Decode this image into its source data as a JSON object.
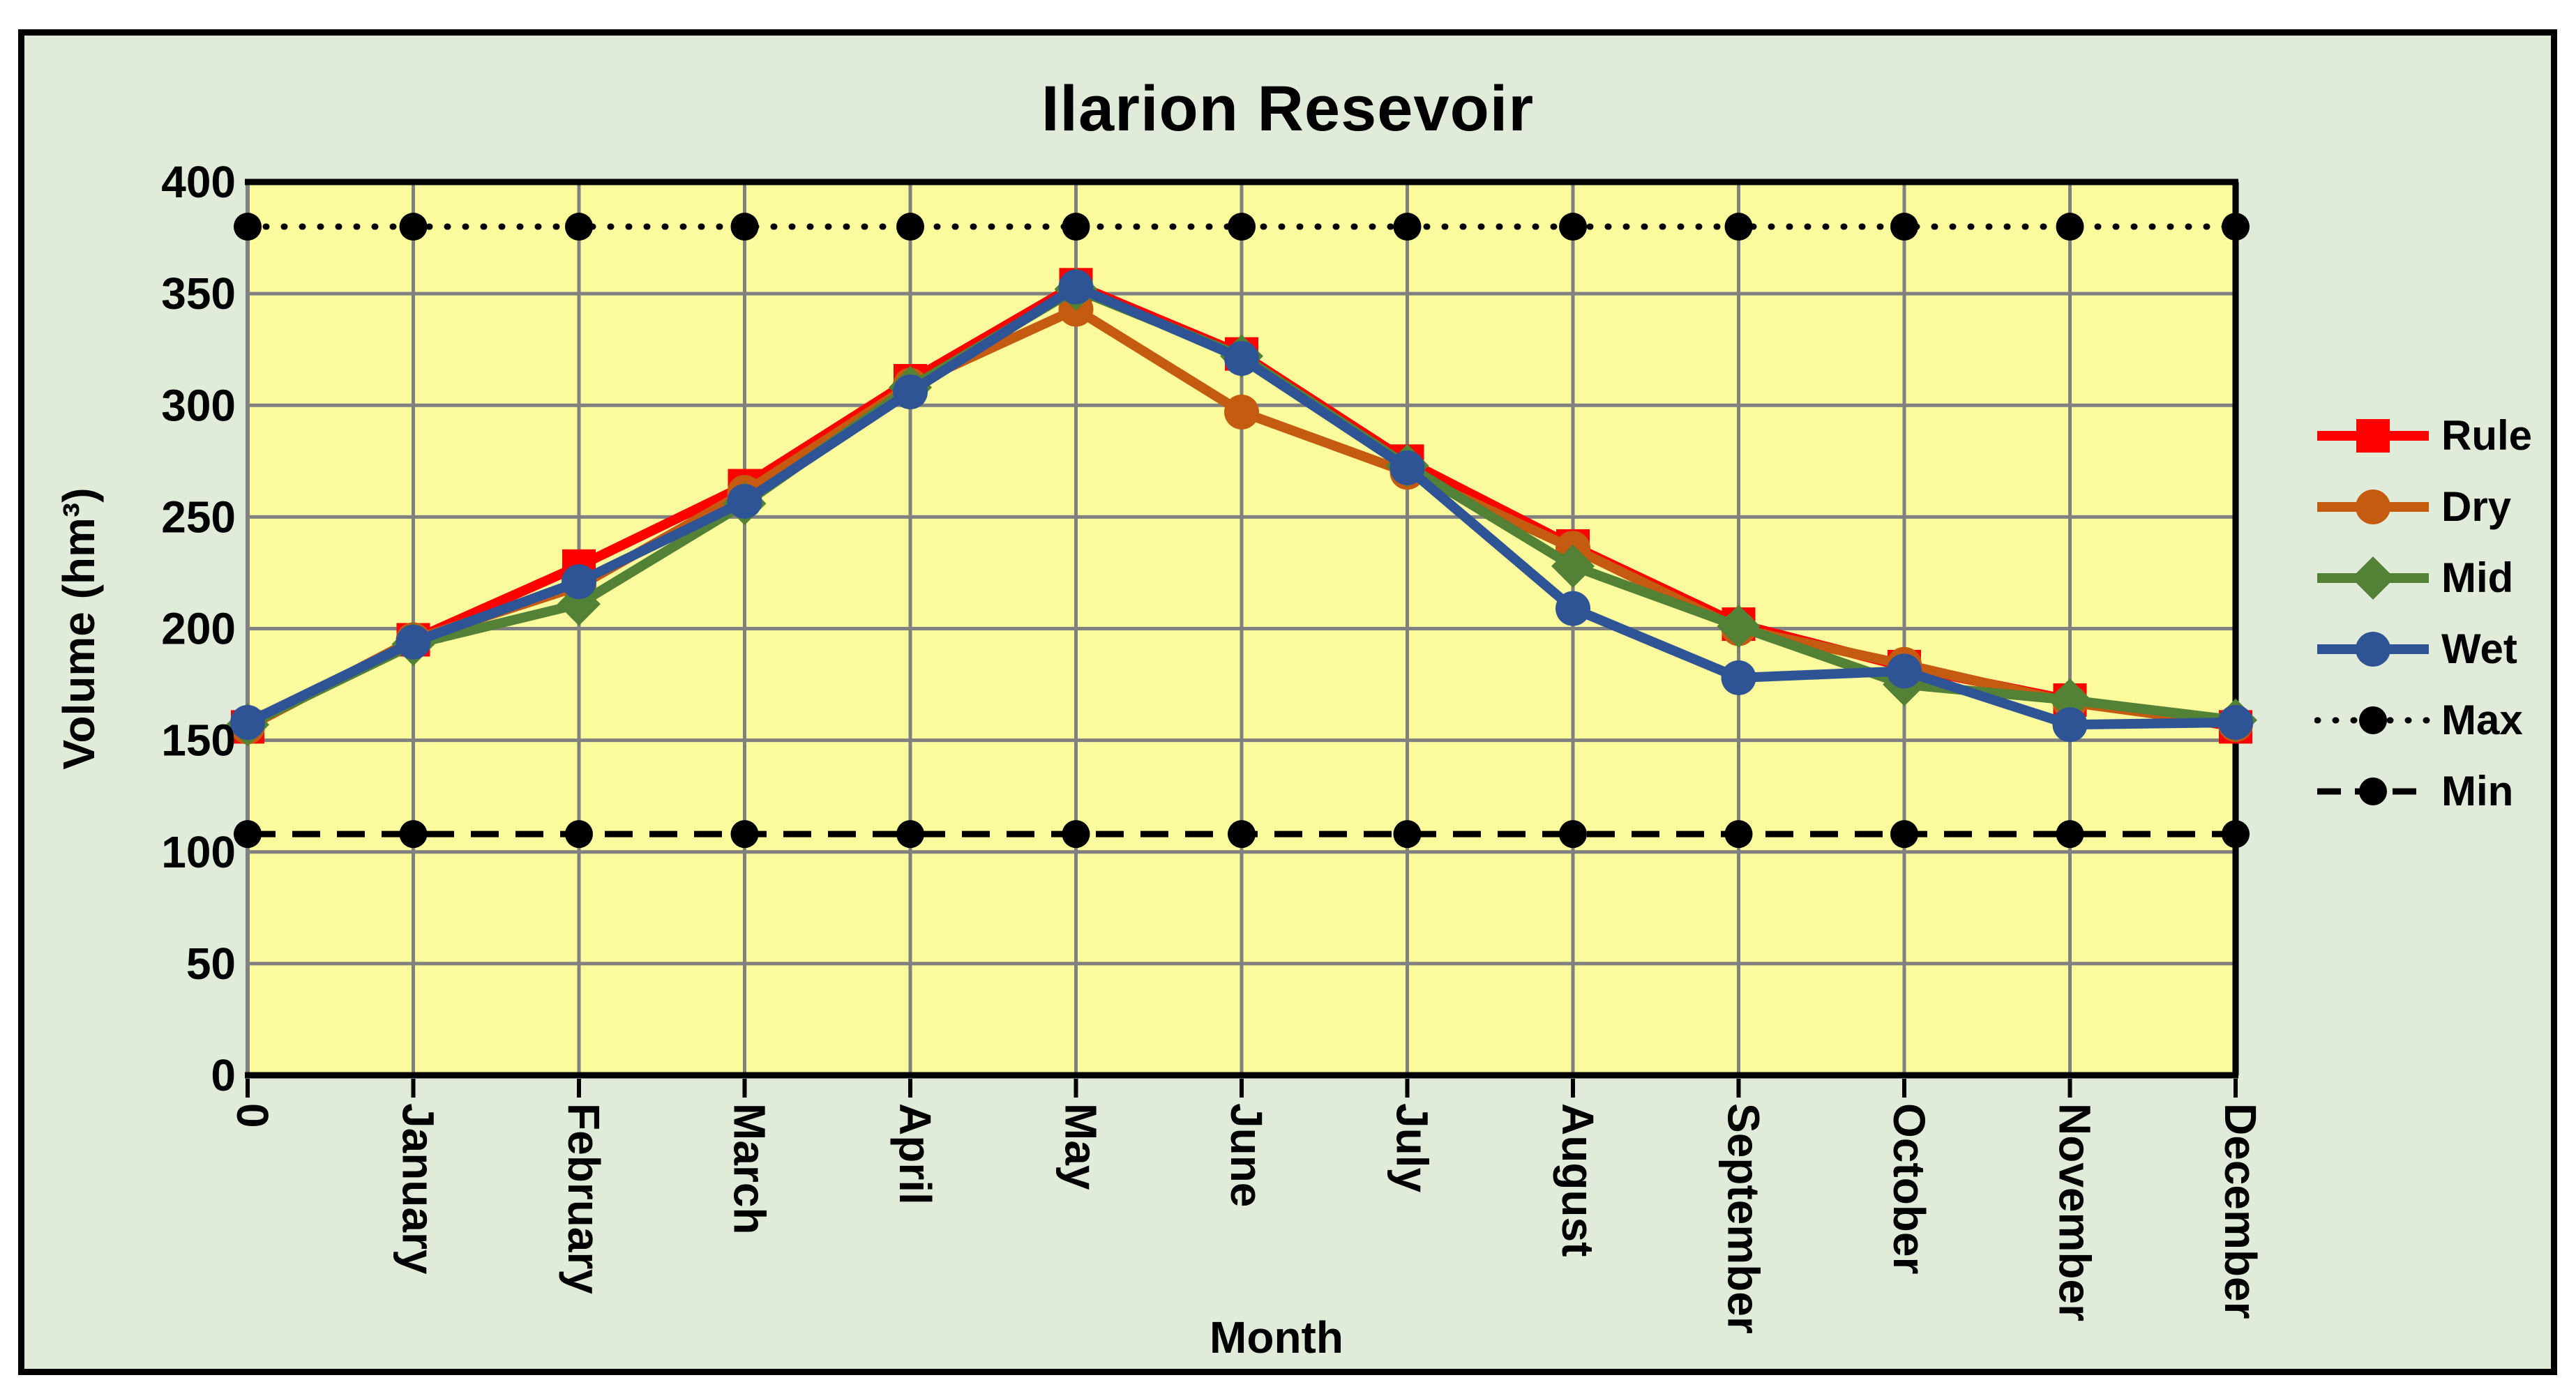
{
  "title": "Ilarion Resevoir",
  "chart_data": {
    "type": "line",
    "title": "Ilarion Resevoir",
    "xlabel": "Month",
    "ylabel": "Volume (hm³)",
    "ylim": [
      0,
      400
    ],
    "y_tick_step": 50,
    "y_tick_labels": [
      0,
      50,
      100,
      150,
      200,
      250,
      300,
      350,
      400
    ],
    "grid": true,
    "legend_position": "right",
    "categories": [
      "0",
      "January",
      "February",
      "March",
      "April",
      "May",
      "June",
      "July",
      "August",
      "September",
      "October",
      "November",
      "December"
    ],
    "series": [
      {
        "name": "Rule",
        "color": "#FF0000",
        "marker": "square",
        "line": "solid",
        "values": [
          156,
          195,
          228,
          264,
          311,
          354,
          323,
          275,
          237,
          202,
          183,
          168,
          156
        ]
      },
      {
        "name": "Dry",
        "color": "#C55A11",
        "marker": "circle",
        "line": "solid",
        "values": [
          156,
          195,
          219,
          261,
          309,
          343,
          297,
          270,
          236,
          200,
          184,
          167,
          157
        ]
      },
      {
        "name": "Mid",
        "color": "#538135",
        "marker": "diamond",
        "line": "solid",
        "values": [
          157,
          193,
          211,
          256,
          308,
          352,
          322,
          273,
          228,
          201,
          175,
          168,
          159
        ]
      },
      {
        "name": "Wet",
        "color": "#2F5496",
        "marker": "circle",
        "line": "solid",
        "values": [
          158,
          194,
          221,
          257,
          306,
          353,
          321,
          272,
          209,
          178,
          181,
          157,
          158
        ]
      },
      {
        "name": "Max",
        "color": "#000000",
        "marker": "dot",
        "line": "dotted",
        "values": [
          380,
          380,
          380,
          380,
          380,
          380,
          380,
          380,
          380,
          380,
          380,
          380,
          380
        ]
      },
      {
        "name": "Min",
        "color": "#000000",
        "marker": "dot",
        "line": "dashed",
        "values": [
          108,
          108,
          108,
          108,
          108,
          108,
          108,
          108,
          108,
          108,
          108,
          108,
          108
        ]
      }
    ],
    "colors": {
      "plot_bg": "#FBFB9E",
      "outer_bg": "#E1EBD9",
      "gridline": "#808080",
      "text": "#000000",
      "frame_border": "#000000"
    }
  }
}
